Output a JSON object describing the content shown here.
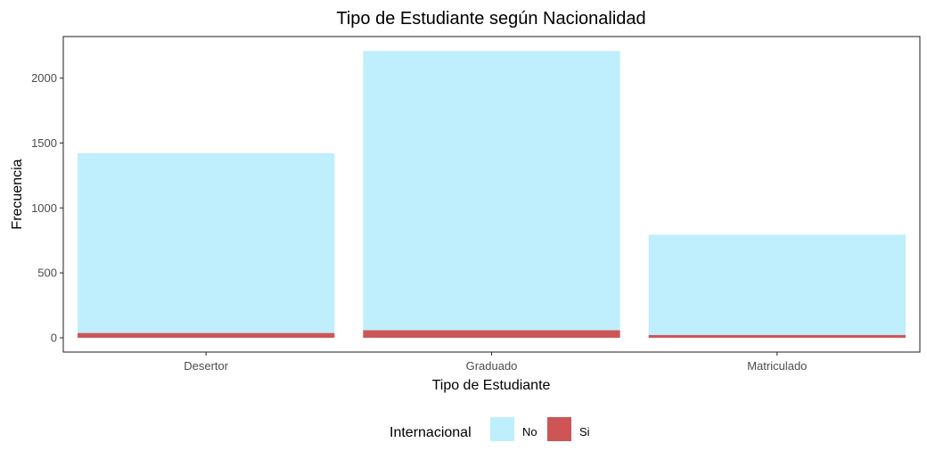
{
  "chart_data": {
    "type": "bar",
    "stacked": true,
    "title": "Tipo de Estudiante según Nacionalidad",
    "xlabel": "Tipo de Estudiante",
    "ylabel": "Frecuencia",
    "categories": [
      "Desertor",
      "Graduado",
      "Matriculado"
    ],
    "series": [
      {
        "name": "Si",
        "values": [
          37,
          58,
          22
        ],
        "color": "#cd5555"
      },
      {
        "name": "No",
        "values": [
          1384,
          2151,
          772
        ],
        "color": "#bfeefc"
      }
    ],
    "ylim": [
      -110,
      2320
    ],
    "yticks": [
      0,
      500,
      1000,
      1500,
      2000
    ],
    "grid": false,
    "legend": {
      "title": "Internacional",
      "position": "bottom",
      "order": [
        "No",
        "Si"
      ]
    }
  }
}
